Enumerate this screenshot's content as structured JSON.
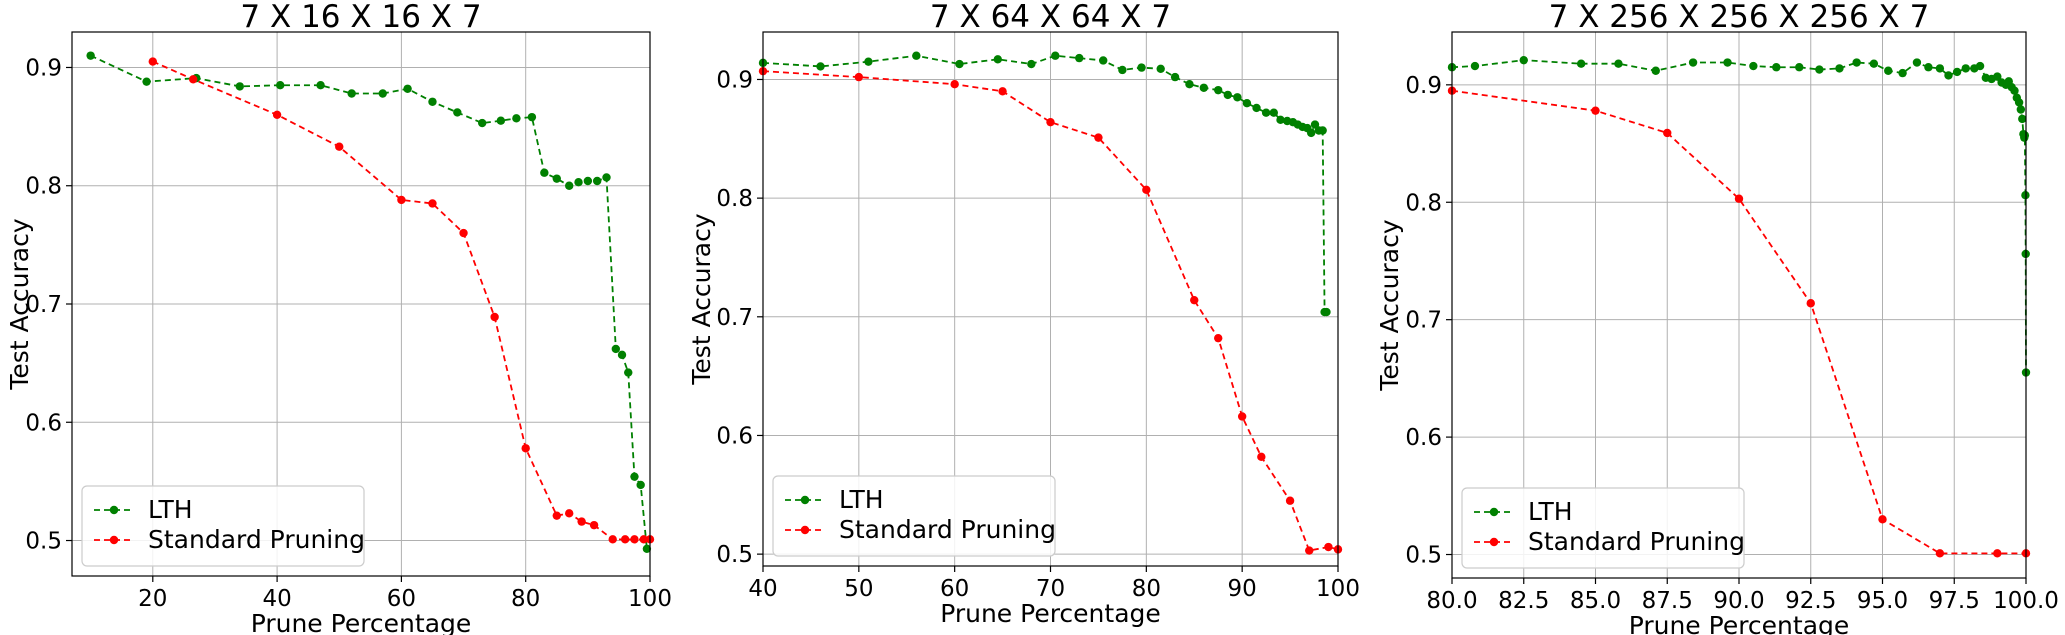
{
  "chart_data": [
    {
      "type": "line",
      "title": "7 X 16 X 16 X 7",
      "xlabel": "Prune Percentage",
      "ylabel": "Test Accuracy",
      "xlim": [
        7,
        100
      ],
      "ylim": [
        0.47,
        0.93
      ],
      "xticks": [
        20,
        40,
        60,
        80,
        100
      ],
      "yticks": [
        0.5,
        0.6,
        0.7,
        0.8,
        0.9
      ],
      "grid": true,
      "legend": "lower-left",
      "series": [
        {
          "name": "LTH",
          "color": "#008000",
          "points": [
            [
              10,
              0.91
            ],
            [
              19,
              0.888
            ],
            [
              27,
              0.891
            ],
            [
              34,
              0.884
            ],
            [
              40.5,
              0.885
            ],
            [
              47,
              0.885
            ],
            [
              52,
              0.878
            ],
            [
              57,
              0.878
            ],
            [
              61,
              0.882
            ],
            [
              65,
              0.871
            ],
            [
              69,
              0.862
            ],
            [
              73,
              0.853
            ],
            [
              76,
              0.855
            ],
            [
              78.5,
              0.857
            ],
            [
              81,
              0.858
            ],
            [
              83,
              0.811
            ],
            [
              85,
              0.806
            ],
            [
              87,
              0.8
            ],
            [
              88.5,
              0.803
            ],
            [
              90,
              0.804
            ],
            [
              91.5,
              0.804
            ],
            [
              93,
              0.807
            ],
            [
              94.5,
              0.662
            ],
            [
              95.5,
              0.657
            ],
            [
              96.5,
              0.642
            ],
            [
              97.5,
              0.554
            ],
            [
              98.5,
              0.547
            ],
            [
              99.5,
              0.493
            ]
          ]
        },
        {
          "name": "Standard Pruning",
          "color": "#ff0000",
          "points": [
            [
              20,
              0.905
            ],
            [
              26.5,
              0.89
            ],
            [
              40,
              0.86
            ],
            [
              50,
              0.833
            ],
            [
              60,
              0.788
            ],
            [
              65,
              0.785
            ],
            [
              70,
              0.76
            ],
            [
              75,
              0.689
            ],
            [
              80,
              0.578
            ],
            [
              85,
              0.521
            ],
            [
              87,
              0.523
            ],
            [
              89,
              0.516
            ],
            [
              91,
              0.513
            ],
            [
              94,
              0.501
            ],
            [
              96,
              0.501
            ],
            [
              97.5,
              0.501
            ],
            [
              99,
              0.501
            ],
            [
              100,
              0.501
            ]
          ]
        }
      ]
    },
    {
      "type": "line",
      "title": "7 X 64 X 64 X 7",
      "xlabel": "Prune Percentage",
      "ylabel": "Test Accuracy",
      "xlim": [
        40,
        100
      ],
      "ylim": [
        0.49,
        0.94
      ],
      "xticks": [
        40,
        50,
        60,
        70,
        80,
        90,
        100
      ],
      "yticks": [
        0.5,
        0.6,
        0.7,
        0.8,
        0.9
      ],
      "grid": true,
      "legend": "lower-left",
      "series": [
        {
          "name": "LTH",
          "color": "#008000",
          "points": [
            [
              40,
              0.914
            ],
            [
              46,
              0.911
            ],
            [
              51,
              0.915
            ],
            [
              56,
              0.92
            ],
            [
              60.5,
              0.913
            ],
            [
              64.5,
              0.917
            ],
            [
              68,
              0.913
            ],
            [
              70.5,
              0.92
            ],
            [
              73,
              0.918
            ],
            [
              75.5,
              0.916
            ],
            [
              77.5,
              0.908
            ],
            [
              79.5,
              0.91
            ],
            [
              81.5,
              0.909
            ],
            [
              83,
              0.902
            ],
            [
              84.5,
              0.896
            ],
            [
              86,
              0.893
            ],
            [
              87.5,
              0.891
            ],
            [
              88.5,
              0.887
            ],
            [
              89.5,
              0.885
            ],
            [
              90.5,
              0.88
            ],
            [
              91.5,
              0.876
            ],
            [
              92.5,
              0.872
            ],
            [
              93.3,
              0.872
            ],
            [
              94,
              0.866
            ],
            [
              94.7,
              0.865
            ],
            [
              95.3,
              0.864
            ],
            [
              95.8,
              0.862
            ],
            [
              96.3,
              0.86
            ],
            [
              96.8,
              0.859
            ],
            [
              97.2,
              0.855
            ],
            [
              97.6,
              0.862
            ],
            [
              98,
              0.857
            ],
            [
              98.4,
              0.857
            ],
            [
              98.6,
              0.704
            ],
            [
              98.8,
              0.704
            ]
          ]
        },
        {
          "name": "Standard Pruning",
          "color": "#ff0000",
          "points": [
            [
              40,
              0.907
            ],
            [
              50,
              0.902
            ],
            [
              60,
              0.896
            ],
            [
              65,
              0.89
            ],
            [
              70,
              0.864
            ],
            [
              75,
              0.851
            ],
            [
              80,
              0.807
            ],
            [
              85,
              0.714
            ],
            [
              87.5,
              0.682
            ],
            [
              90,
              0.616
            ],
            [
              92,
              0.582
            ],
            [
              95,
              0.545
            ],
            [
              97,
              0.503
            ],
            [
              99,
              0.506
            ],
            [
              100,
              0.504
            ]
          ]
        }
      ]
    },
    {
      "type": "line",
      "title": "7 X 256 X 256 X 256 X 7",
      "xlabel": "Prune Percentage",
      "ylabel": "Test Accuracy",
      "xlim": [
        80,
        100
      ],
      "ylim": [
        0.48,
        0.945
      ],
      "xticks": [
        80.0,
        82.5,
        85.0,
        87.5,
        90.0,
        92.5,
        95.0,
        97.5,
        100.0
      ],
      "yticks": [
        0.5,
        0.6,
        0.7,
        0.8,
        0.9
      ],
      "grid": true,
      "legend": "lower-left",
      "series": [
        {
          "name": "LTH",
          "color": "#008000",
          "points": [
            [
              80,
              0.915
            ],
            [
              80.8,
              0.916
            ],
            [
              82.5,
              0.921
            ],
            [
              84.5,
              0.918
            ],
            [
              85.8,
              0.918
            ],
            [
              87.1,
              0.912
            ],
            [
              88.4,
              0.919
            ],
            [
              89.6,
              0.919
            ],
            [
              90.5,
              0.916
            ],
            [
              91.3,
              0.915
            ],
            [
              92.1,
              0.915
            ],
            [
              92.8,
              0.913
            ],
            [
              93.5,
              0.914
            ],
            [
              94.1,
              0.919
            ],
            [
              94.7,
              0.918
            ],
            [
              95.2,
              0.912
            ],
            [
              95.7,
              0.91
            ],
            [
              96.2,
              0.919
            ],
            [
              96.6,
              0.915
            ],
            [
              97.0,
              0.914
            ],
            [
              97.3,
              0.908
            ],
            [
              97.6,
              0.911
            ],
            [
              97.9,
              0.914
            ],
            [
              98.2,
              0.914
            ],
            [
              98.4,
              0.916
            ],
            [
              98.6,
              0.906
            ],
            [
              98.8,
              0.905
            ],
            [
              99.0,
              0.907
            ],
            [
              99.15,
              0.902
            ],
            [
              99.3,
              0.9
            ],
            [
              99.4,
              0.903
            ],
            [
              99.5,
              0.898
            ],
            [
              99.6,
              0.895
            ],
            [
              99.68,
              0.889
            ],
            [
              99.76,
              0.885
            ],
            [
              99.82,
              0.879
            ],
            [
              99.87,
              0.871
            ],
            [
              99.91,
              0.858
            ],
            [
              99.94,
              0.855
            ],
            [
              99.96,
              0.857
            ],
            [
              99.98,
              0.806
            ],
            [
              99.99,
              0.756
            ],
            [
              100,
              0.655
            ]
          ]
        },
        {
          "name": "Standard Pruning",
          "color": "#ff0000",
          "points": [
            [
              80,
              0.895
            ],
            [
              85,
              0.878
            ],
            [
              87.5,
              0.859
            ],
            [
              90,
              0.803
            ],
            [
              92.5,
              0.714
            ],
            [
              95,
              0.53
            ],
            [
              97,
              0.501
            ],
            [
              99,
              0.501
            ],
            [
              100,
              0.501
            ]
          ]
        }
      ]
    }
  ]
}
